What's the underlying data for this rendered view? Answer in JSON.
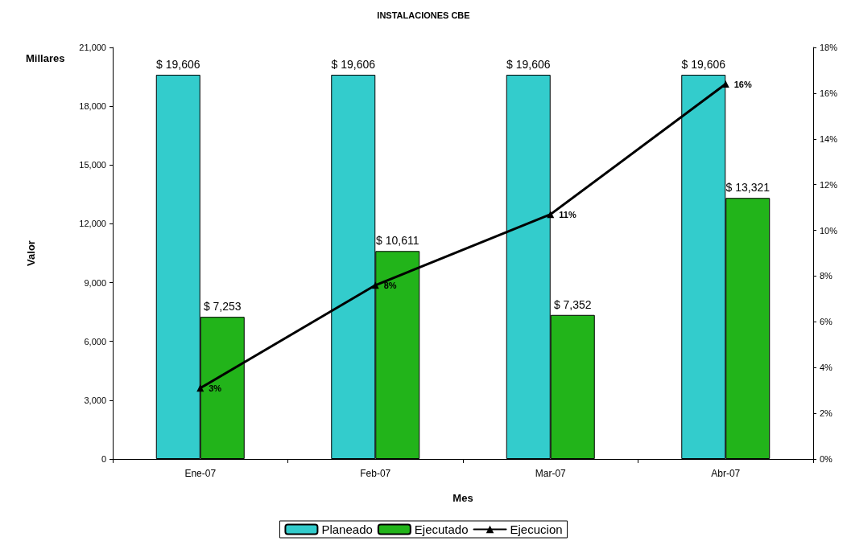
{
  "chart_data": {
    "type": "bar",
    "title": "INSTALACIONES CBE",
    "xlabel": "Mes",
    "ylabel": "Valor",
    "annotations": [
      "Millares"
    ],
    "categories": [
      "Ene-07",
      "Feb-07",
      "Mar-07",
      "Abr-07"
    ],
    "series": [
      {
        "name": "Planeado",
        "color": "#33cccc",
        "values": [
          19606,
          19606,
          19606,
          19606
        ],
        "value_labels": [
          "$ 19,606",
          "$ 19,606",
          "$ 19,606",
          "$ 19,606"
        ]
      },
      {
        "name": "Ejecutado",
        "color": "#22b41a",
        "values": [
          7253,
          10611,
          7352,
          13321
        ],
        "value_labels": [
          "$ 7,253",
          "$ 10,611",
          "$ 7,352",
          "$ 13,321"
        ]
      },
      {
        "name": "Ejecucion",
        "type": "line",
        "axis": "y2",
        "color": "#000000",
        "marker": "triangle",
        "line_style": "solid",
        "values": [
          3.1,
          7.6,
          10.7,
          16.4
        ],
        "value_labels": [
          "3%",
          "8%",
          "11%",
          "16%"
        ]
      }
    ],
    "ylim": [
      0,
      21000
    ],
    "yticks": [
      0,
      {
        "value": 3000,
        "label": "3,000"
      },
      {
        "value": 6000,
        "label": "6,000"
      },
      {
        "value": 9000,
        "label": "9,000"
      },
      {
        "value": 12000,
        "label": "12,000"
      },
      {
        "value": 15000,
        "label": "15,000"
      },
      {
        "value": 18000,
        "label": "18,000"
      },
      {
        "value": 21000,
        "label": "21,000"
      }
    ],
    "y2lim": [
      0,
      18
    ],
    "y2ticks": [
      {
        "value": 0,
        "label": "0%"
      },
      {
        "value": 2,
        "label": "2%"
      },
      {
        "value": 4,
        "label": "4%"
      },
      {
        "value": 6,
        "label": "6%"
      },
      {
        "value": 8,
        "label": "8%"
      },
      {
        "value": 10,
        "label": "10%"
      },
      {
        "value": 12,
        "label": "12%"
      },
      {
        "value": 14,
        "label": "14%"
      },
      {
        "value": 16,
        "label": "16%"
      },
      {
        "value": 18,
        "label": "18%"
      }
    ],
    "grid": false,
    "legend": "bottom"
  }
}
